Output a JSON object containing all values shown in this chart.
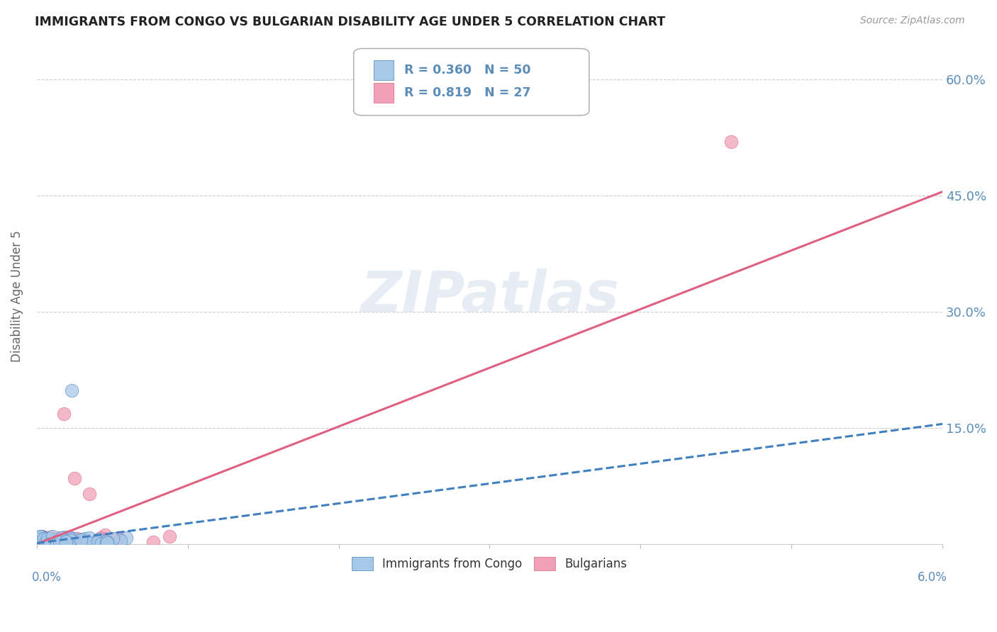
{
  "title": "IMMIGRANTS FROM CONGO VS BULGARIAN DISABILITY AGE UNDER 5 CORRELATION CHART",
  "source": "Source: ZipAtlas.com",
  "ylabel": "Disability Age Under 5",
  "yticks": [
    0.0,
    0.15,
    0.3,
    0.45,
    0.6
  ],
  "ytick_labels": [
    "",
    "15.0%",
    "30.0%",
    "45.0%",
    "60.0%"
  ],
  "xlim": [
    0.0,
    0.06
  ],
  "ylim": [
    0.0,
    0.64
  ],
  "legend_r1": "R = 0.360   N = 50",
  "legend_r2": "R = 0.819   N = 27",
  "legend_label1": "Immigrants from Congo",
  "legend_label2": "Bulgarians",
  "color_blue": "#A8C8E8",
  "color_pink": "#F0A0B8",
  "color_blue_line": "#4080C0",
  "color_pink_line": "#E06080",
  "color_text": "#5B8DB8",
  "background_color": "#FFFFFF",
  "watermark_text": "ZIPatlas",
  "pink_line_x": [
    0.0,
    0.06
  ],
  "pink_line_y": [
    0.0,
    0.455
  ],
  "blue_line_x": [
    0.0,
    0.06
  ],
  "blue_line_y": [
    0.001,
    0.155
  ]
}
